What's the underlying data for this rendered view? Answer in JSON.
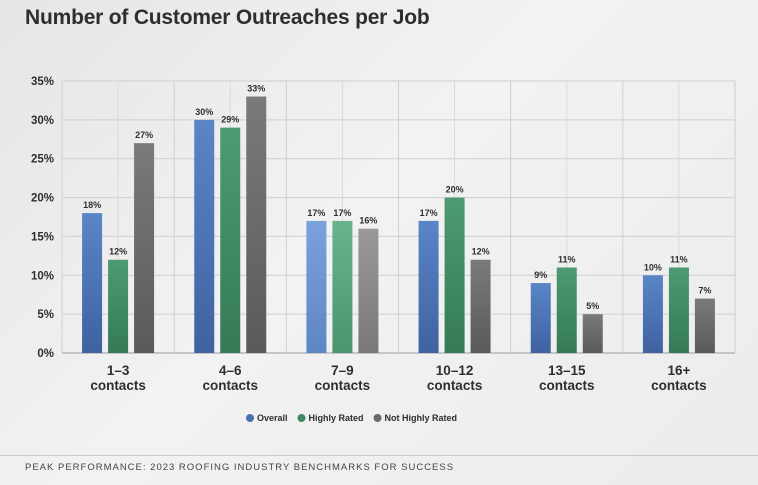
{
  "chart_data": {
    "type": "bar",
    "title": "Number of Customer Outreaches per Job",
    "xlabel": "",
    "ylabel": "",
    "ylim": [
      0,
      35
    ],
    "yticks": [
      "0%",
      "5%",
      "10%",
      "15%",
      "20%",
      "25%",
      "30%",
      "35%"
    ],
    "grid": true,
    "legend_position": "bottom-center",
    "categories": [
      [
        "1–3",
        "contacts"
      ],
      [
        "4–6",
        "contacts"
      ],
      [
        "7–9",
        "contacts"
      ],
      [
        "10–12",
        "contacts"
      ],
      [
        "13–15",
        "contacts"
      ],
      [
        "16+",
        "contacts"
      ]
    ],
    "series": [
      {
        "name": "Overall",
        "color": "#4a72b0",
        "values": [
          18,
          30,
          17,
          17,
          9,
          10
        ]
      },
      {
        "name": "Highly Rated",
        "color": "#3f8a65",
        "values": [
          12,
          29,
          17,
          20,
          11,
          11
        ]
      },
      {
        "name": "Not Highly Rated",
        "color": "#6b6b6b",
        "values": [
          27,
          33,
          16,
          12,
          5,
          7
        ]
      }
    ]
  },
  "footer": "PEAK PERFORMANCE: 2023 ROOFING INDUSTRY BENCHMARKS FOR SUCCESS"
}
